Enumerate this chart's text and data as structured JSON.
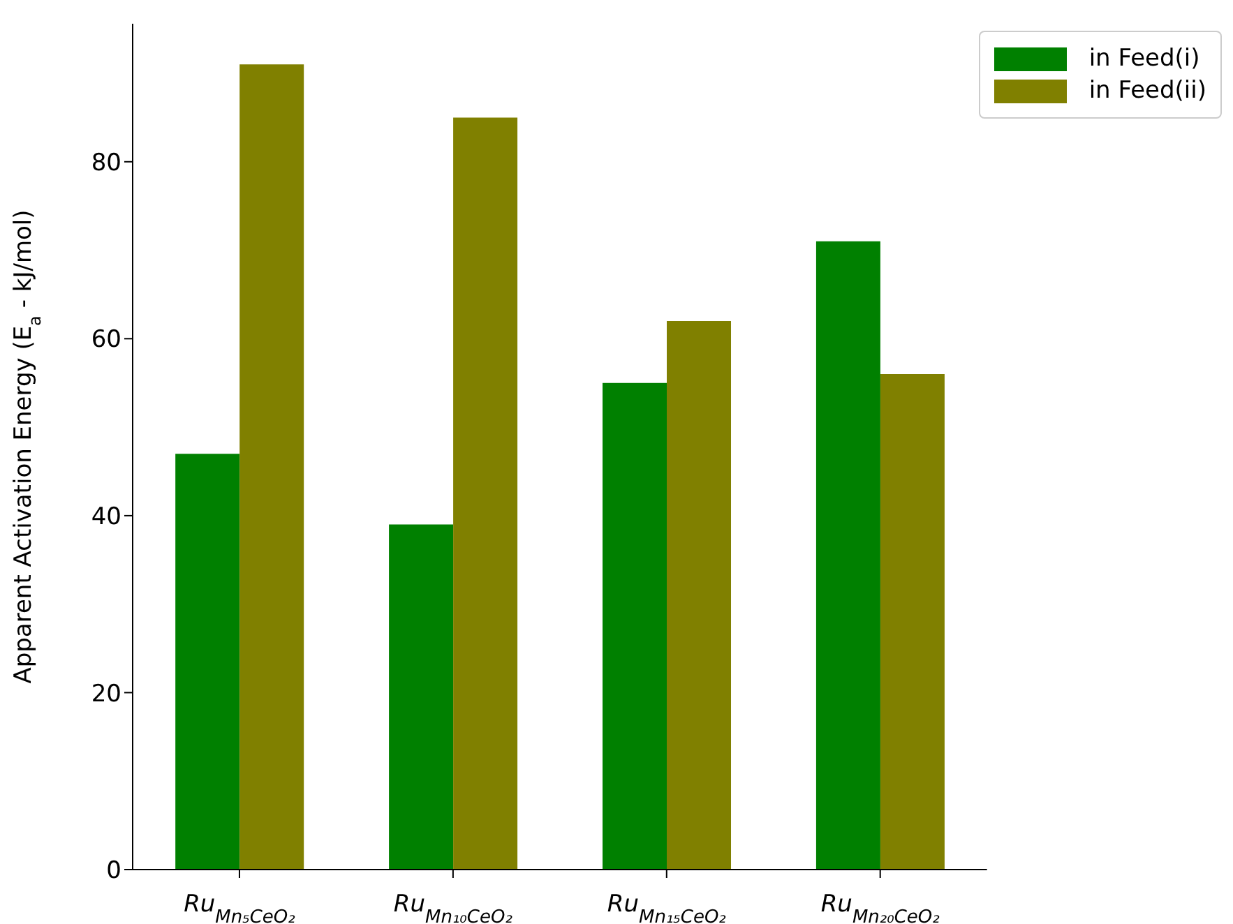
{
  "chart_data": {
    "type": "bar",
    "ylabel": "Apparent Activation Energy (E$_{a}$ - kJ/mol)",
    "categories": [
      "Ru$_{Mn₅CeO₂}$",
      "Ru$_{Mn₁₀CeO₂}$",
      "Ru$_{Mn₁₅CeO₂}$",
      "Ru$_{Mn₂₀CeO₂}$"
    ],
    "series": [
      {
        "name": "in Feed(i)",
        "color": "#008000",
        "values": [
          47,
          39,
          55,
          71
        ]
      },
      {
        "name": "in Feed(ii)",
        "color": "#808000",
        "values": [
          91,
          85,
          62,
          56
        ]
      }
    ],
    "ylim": [
      0,
      95.6
    ],
    "yticks": [
      0,
      20,
      40,
      60,
      80
    ],
    "legend": "top right"
  }
}
